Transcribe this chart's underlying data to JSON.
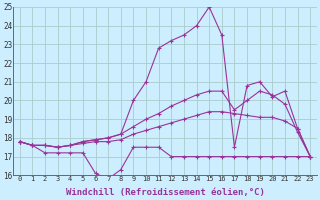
{
  "background_color": "#cceeff",
  "grid_color": "#aacccc",
  "line_color": "#993399",
  "xlim": [
    -0.5,
    23.5
  ],
  "ylim": [
    16,
    25
  ],
  "xlabel": "Windchill (Refroidissement éolien,°C)",
  "xlabel_fontsize": 6.5,
  "yticks": [
    16,
    17,
    18,
    19,
    20,
    21,
    22,
    23,
    24,
    25
  ],
  "xticks": [
    0,
    1,
    2,
    3,
    4,
    5,
    6,
    7,
    8,
    9,
    10,
    11,
    12,
    13,
    14,
    15,
    16,
    17,
    18,
    19,
    20,
    21,
    22,
    23
  ],
  "series": [
    {
      "x": [
        0,
        1,
        2,
        3,
        4,
        5,
        6,
        7,
        8,
        9,
        10,
        11,
        12,
        13,
        14,
        15,
        16,
        17,
        18,
        19,
        20,
        21,
        22,
        23
      ],
      "y": [
        17.8,
        17.6,
        17.2,
        17.2,
        17.2,
        17.2,
        16.1,
        15.8,
        16.3,
        17.5,
        17.5,
        17.5,
        17.0,
        17.0,
        17.0,
        17.0,
        17.0,
        17.0,
        17.0,
        17.0,
        17.0,
        17.0,
        17.0,
        17.0
      ],
      "style": "-",
      "marker": "+"
    },
    {
      "x": [
        0,
        1,
        2,
        3,
        4,
        5,
        6,
        7,
        8,
        9,
        10,
        11,
        12,
        13,
        14,
        15,
        16,
        17,
        18,
        19,
        20,
        21,
        22,
        23
      ],
      "y": [
        17.8,
        17.6,
        17.6,
        17.5,
        17.6,
        17.7,
        17.8,
        17.8,
        17.9,
        18.2,
        18.4,
        18.6,
        18.8,
        19.0,
        19.2,
        19.4,
        19.4,
        19.3,
        19.2,
        19.1,
        19.1,
        18.9,
        18.5,
        17.0
      ],
      "style": "-",
      "marker": "+"
    },
    {
      "x": [
        0,
        1,
        2,
        3,
        4,
        5,
        6,
        7,
        8,
        9,
        10,
        11,
        12,
        13,
        14,
        15,
        16,
        17,
        18,
        19,
        20,
        21,
        22,
        23
      ],
      "y": [
        17.8,
        17.6,
        17.6,
        17.5,
        17.6,
        17.8,
        17.9,
        18.0,
        18.2,
        18.6,
        19.0,
        19.3,
        19.7,
        20.0,
        20.3,
        20.5,
        20.5,
        19.5,
        20.0,
        20.5,
        20.3,
        19.8,
        18.3,
        17.0
      ],
      "style": "-",
      "marker": "+"
    },
    {
      "x": [
        0,
        1,
        2,
        3,
        4,
        5,
        6,
        7,
        8,
        9,
        10,
        11,
        12,
        13,
        14,
        15,
        16,
        17,
        18,
        19,
        20,
        21,
        22,
        23
      ],
      "y": [
        17.8,
        17.6,
        17.6,
        17.5,
        17.6,
        17.8,
        17.9,
        18.0,
        18.2,
        20.0,
        21.0,
        22.8,
        23.2,
        23.5,
        24.0,
        25.0,
        23.5,
        17.5,
        20.8,
        21.0,
        20.2,
        20.5,
        18.5,
        17.0
      ],
      "style": "-",
      "marker": "+"
    }
  ]
}
